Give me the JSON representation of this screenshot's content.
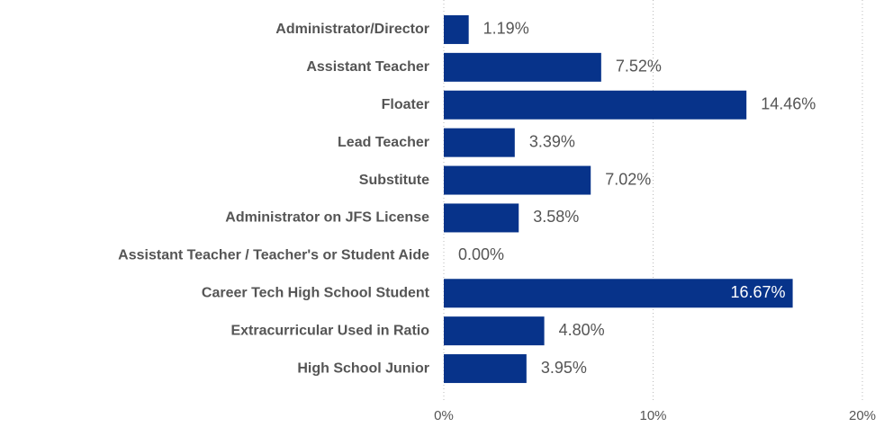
{
  "chart_data": {
    "type": "bar",
    "orientation": "horizontal",
    "categories": [
      "Administrator/Director",
      "Assistant Teacher",
      "Floater",
      "Lead Teacher",
      "Substitute",
      "Administrator on JFS License",
      "Assistant Teacher / Teacher's or Student Aide",
      "Career Tech High School Student",
      "Extracurricular Used in Ratio",
      "High School Junior"
    ],
    "values": [
      1.19,
      7.52,
      14.46,
      3.39,
      7.02,
      3.58,
      0.0,
      16.67,
      4.8,
      3.95
    ],
    "value_labels": [
      "1.19%",
      "7.52%",
      "14.46%",
      "3.39%",
      "7.02%",
      "3.58%",
      "0.00%",
      "16.67%",
      "4.80%",
      "3.95%"
    ],
    "color": "#07338a",
    "xlim": [
      0,
      20
    ],
    "xticks": [
      {
        "value": 0,
        "label": "0%"
      },
      {
        "value": 10,
        "label": "10%"
      },
      {
        "value": 20,
        "label": "20%"
      }
    ],
    "grid": true
  }
}
